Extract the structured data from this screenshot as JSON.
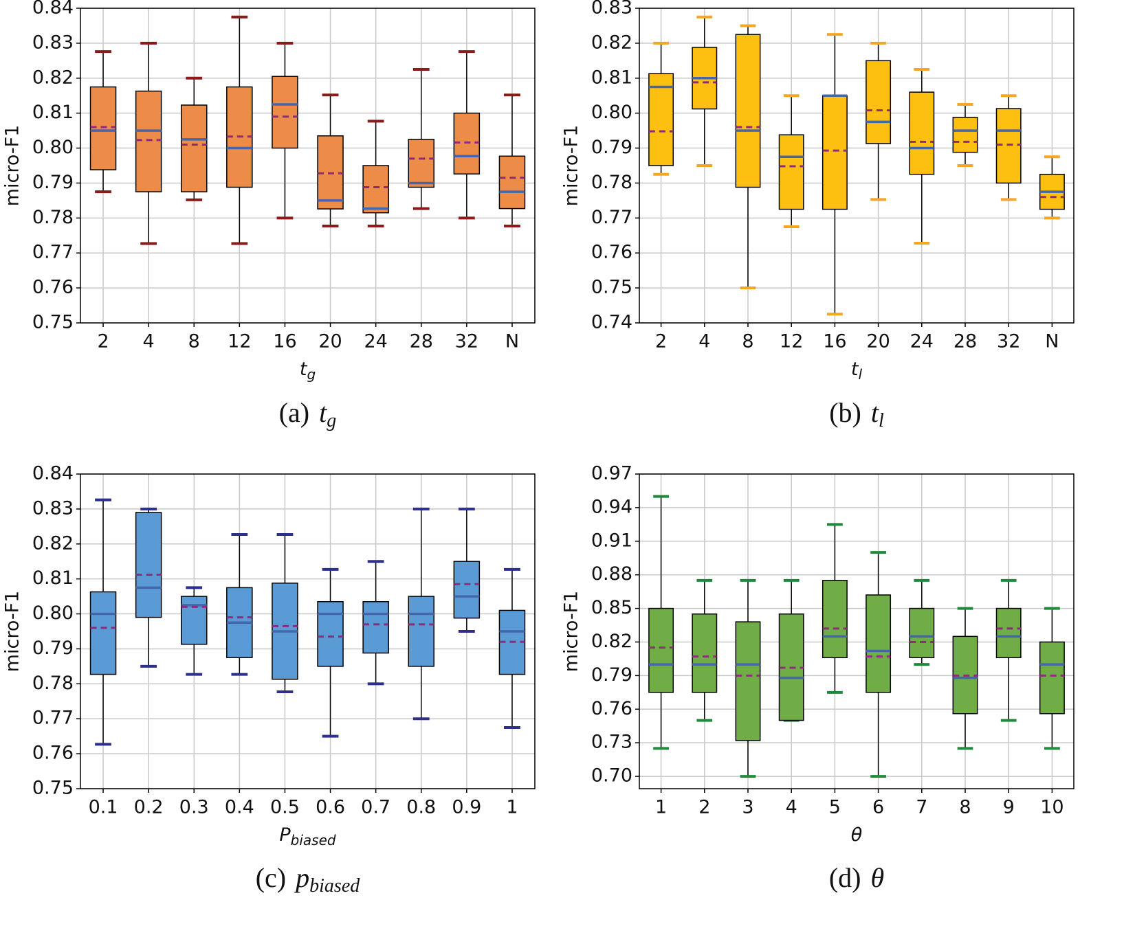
{
  "chart_data": [
    {
      "type": "box",
      "ylabel": "micro-F1",
      "xlabel": {
        "text": "t",
        "sub": "g"
      },
      "caption": {
        "label": "(a)",
        "symbol": "t",
        "sub": "g"
      },
      "categories": [
        "2",
        "4",
        "8",
        "12",
        "16",
        "20",
        "24",
        "28",
        "32",
        "N"
      ],
      "whislo": [
        0.7875,
        0.7727,
        0.7852,
        0.7727,
        0.78,
        0.7777,
        0.7777,
        0.7827,
        0.78,
        0.7777
      ],
      "q1": [
        0.7938,
        0.7875,
        0.7875,
        0.7888,
        0.8,
        0.7826,
        0.7815,
        0.7888,
        0.7926,
        0.7827
      ],
      "med": [
        0.805,
        0.805,
        0.8025,
        0.8,
        0.8125,
        0.785,
        0.7827,
        0.79,
        0.7977,
        0.7875
      ],
      "mean": [
        0.806,
        0.8023,
        0.801,
        0.8033,
        0.809,
        0.7928,
        0.7888,
        0.797,
        0.8016,
        0.7915
      ],
      "q3": [
        0.8175,
        0.8163,
        0.8123,
        0.8175,
        0.8205,
        0.8035,
        0.795,
        0.8025,
        0.81,
        0.7977
      ],
      "whishi": [
        0.8276,
        0.83,
        0.82,
        0.8375,
        0.83,
        0.8152,
        0.8077,
        0.8225,
        0.8276,
        0.8152
      ],
      "color": "#ed8b48",
      "cap_color": "#8b1a1a",
      "median_color": "#4466aa",
      "mean_color": "#8b2d7a",
      "ylim": [
        0.75,
        0.84
      ],
      "grid": true,
      "yticks": [
        {
          "value": 0.75,
          "label": "0.75"
        },
        {
          "value": 0.76,
          "label": "0.76"
        },
        {
          "value": 0.77,
          "label": "0.77"
        },
        {
          "value": 0.78,
          "label": "0.78"
        },
        {
          "value": 0.79,
          "label": "0.79"
        },
        {
          "value": 0.8,
          "label": "0.80"
        },
        {
          "value": 0.81,
          "label": "0.81"
        },
        {
          "value": 0.82,
          "label": "0.82"
        },
        {
          "value": 0.83,
          "label": "0.83"
        },
        {
          "value": 0.84,
          "label": "0.84"
        }
      ]
    },
    {
      "type": "box",
      "ylabel": "micro-F1",
      "xlabel": {
        "text": "t",
        "sub": "l"
      },
      "caption": {
        "label": "(b)",
        "symbol": "t",
        "sub": "l"
      },
      "categories": [
        "2",
        "4",
        "8",
        "12",
        "16",
        "20",
        "24",
        "28",
        "32",
        "N"
      ],
      "whislo": [
        0.7825,
        0.785,
        0.75,
        0.7675,
        0.7425,
        0.7753,
        0.7628,
        0.785,
        0.7753,
        0.77
      ],
      "q1": [
        0.785,
        0.8012,
        0.7788,
        0.7725,
        0.7725,
        0.7913,
        0.7825,
        0.7888,
        0.78,
        0.7725
      ],
      "med": [
        0.8075,
        0.81,
        0.795,
        0.7875,
        0.805,
        0.7975,
        0.79,
        0.795,
        0.795,
        0.7775
      ],
      "mean": [
        0.7948,
        0.8088,
        0.796,
        0.7848,
        0.7893,
        0.8008,
        0.7918,
        0.7918,
        0.791,
        0.776
      ],
      "q3": [
        0.8113,
        0.8188,
        0.8225,
        0.7938,
        0.805,
        0.815,
        0.806,
        0.7988,
        0.8013,
        0.7825
      ],
      "whishi": [
        0.82,
        0.8275,
        0.825,
        0.805,
        0.8225,
        0.82,
        0.8125,
        0.8025,
        0.805,
        0.7875
      ],
      "color": "#fdc010",
      "cap_color": "#f5a623",
      "median_color": "#4466aa",
      "mean_color": "#8b2d7a",
      "ylim": [
        0.74,
        0.83
      ],
      "grid": true,
      "yticks": [
        {
          "value": 0.74,
          "label": "0.74"
        },
        {
          "value": 0.75,
          "label": "0.75"
        },
        {
          "value": 0.76,
          "label": "0.76"
        },
        {
          "value": 0.77,
          "label": "0.77"
        },
        {
          "value": 0.78,
          "label": "0.78"
        },
        {
          "value": 0.79,
          "label": "0.79"
        },
        {
          "value": 0.8,
          "label": "0.80"
        },
        {
          "value": 0.81,
          "label": "0.81"
        },
        {
          "value": 0.82,
          "label": "0.82"
        },
        {
          "value": 0.83,
          "label": "0.83"
        }
      ]
    },
    {
      "type": "box",
      "ylabel": "micro-F1",
      "xlabel": {
        "text": "P",
        "sub": "biased"
      },
      "caption": {
        "label": "(c)",
        "symbol": "p",
        "sub": "biased"
      },
      "categories": [
        "0.1",
        "0.2",
        "0.3",
        "0.4",
        "0.5",
        "0.6",
        "0.7",
        "0.8",
        "0.9",
        "1"
      ],
      "whislo": [
        0.7627,
        0.785,
        0.7827,
        0.7827,
        0.7777,
        0.765,
        0.78,
        0.77,
        0.795,
        0.7675
      ],
      "q1": [
        0.7827,
        0.799,
        0.7913,
        0.7875,
        0.7813,
        0.785,
        0.7888,
        0.785,
        0.7988,
        0.7827
      ],
      "med": [
        0.8,
        0.8075,
        0.8025,
        0.7975,
        0.795,
        0.8,
        0.8,
        0.8,
        0.805,
        0.795
      ],
      "mean": [
        0.796,
        0.8112,
        0.802,
        0.799,
        0.7965,
        0.7935,
        0.797,
        0.797,
        0.8085,
        0.792
      ],
      "q3": [
        0.8063,
        0.829,
        0.805,
        0.8075,
        0.8088,
        0.8035,
        0.8035,
        0.805,
        0.815,
        0.801
      ],
      "whishi": [
        0.8326,
        0.83,
        0.8075,
        0.8227,
        0.8227,
        0.8127,
        0.815,
        0.83,
        0.83,
        0.8127
      ],
      "color": "#5b9bd5",
      "cap_color": "#2e2e8c",
      "median_color": "#4466aa",
      "mean_color": "#8b2d7a",
      "ylim": [
        0.75,
        0.84
      ],
      "grid": true,
      "yticks": [
        {
          "value": 0.75,
          "label": "0.75"
        },
        {
          "value": 0.76,
          "label": "0.76"
        },
        {
          "value": 0.77,
          "label": "0.77"
        },
        {
          "value": 0.78,
          "label": "0.78"
        },
        {
          "value": 0.79,
          "label": "0.79"
        },
        {
          "value": 0.8,
          "label": "0.80"
        },
        {
          "value": 0.81,
          "label": "0.81"
        },
        {
          "value": 0.82,
          "label": "0.82"
        },
        {
          "value": 0.83,
          "label": "0.83"
        },
        {
          "value": 0.84,
          "label": "0.84"
        }
      ]
    },
    {
      "type": "box",
      "ylabel": "micro-F1",
      "xlabel": {
        "text": "θ"
      },
      "caption": {
        "label": "(d)",
        "symbol": "θ"
      },
      "categories": [
        "1",
        "2",
        "3",
        "4",
        "5",
        "6",
        "7",
        "8",
        "9",
        "10"
      ],
      "whislo": [
        0.725,
        0.75,
        0.7,
        0.75,
        0.775,
        0.7,
        0.8,
        0.725,
        0.75,
        0.725
      ],
      "q1": [
        0.775,
        0.775,
        0.732,
        0.75,
        0.806,
        0.775,
        0.806,
        0.756,
        0.806,
        0.756
      ],
      "med": [
        0.8,
        0.8,
        0.8,
        0.788,
        0.825,
        0.812,
        0.825,
        0.788,
        0.825,
        0.8
      ],
      "mean": [
        0.815,
        0.807,
        0.79,
        0.797,
        0.832,
        0.807,
        0.82,
        0.79,
        0.832,
        0.79
      ],
      "q3": [
        0.85,
        0.845,
        0.838,
        0.845,
        0.875,
        0.862,
        0.85,
        0.825,
        0.85,
        0.82
      ],
      "whishi": [
        0.95,
        0.875,
        0.875,
        0.875,
        0.925,
        0.9,
        0.875,
        0.85,
        0.875,
        0.85
      ],
      "color": "#70ad47",
      "cap_color": "#1e8a3c",
      "median_color": "#4466aa",
      "mean_color": "#8b2d7a",
      "ylim": [
        0.689,
        0.97
      ],
      "grid": true,
      "yticks": [
        {
          "value": 0.7,
          "label": "0.70"
        },
        {
          "value": 0.73,
          "label": "0.73"
        },
        {
          "value": 0.76,
          "label": "0.76"
        },
        {
          "value": 0.79,
          "label": "0.79"
        },
        {
          "value": 0.82,
          "label": "0.82"
        },
        {
          "value": 0.85,
          "label": "0.85"
        },
        {
          "value": 0.88,
          "label": "0.88"
        },
        {
          "value": 0.91,
          "label": "0.91"
        },
        {
          "value": 0.94,
          "label": "0.94"
        },
        {
          "value": 0.97,
          "label": "0.97"
        }
      ]
    }
  ]
}
